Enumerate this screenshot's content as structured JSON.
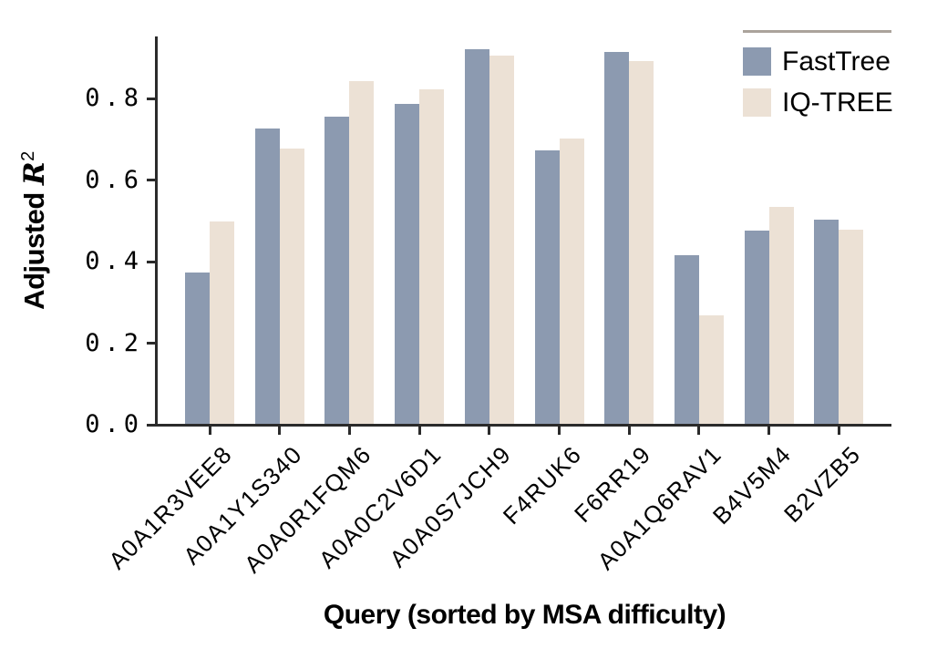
{
  "chart_data": {
    "type": "bar",
    "title": "",
    "xlabel": "Query (sorted by MSA difficulty)",
    "ylabel": {
      "text": "Adjusted ",
      "math": "R",
      "superscript": "2"
    },
    "categories": [
      "A0A1R3VEE8",
      "A0A1Y1S340",
      "A0A0R1FQM6",
      "A0A0C2V6D1",
      "A0A0S7JCH9",
      "F4RUK6",
      "F6RR19",
      "A0A1Q6RAV1",
      "B4V5M4",
      "B2VZB5"
    ],
    "series": [
      {
        "name": "FastTree",
        "color": "#8C9AB0",
        "values": [
          0.372,
          0.724,
          0.754,
          0.784,
          0.918,
          0.67,
          0.911,
          0.413,
          0.474,
          0.501
        ]
      },
      {
        "name": "IQ-TREE",
        "color": "#ECE1D5",
        "values": [
          0.497,
          0.674,
          0.84,
          0.82,
          0.902,
          0.699,
          0.89,
          0.267,
          0.531,
          0.477
        ]
      }
    ],
    "ylim": [
      0.0,
      0.952
    ],
    "yticks": [
      0.0,
      0.2,
      0.4,
      0.6,
      0.8
    ],
    "ytick_labels": [
      "0.0",
      "0.2",
      "0.4",
      "0.6",
      "0.8"
    ],
    "grid": false,
    "legend": {
      "location": "upper right",
      "separator_color": "#ABA39B",
      "entries": [
        "FastTree",
        "IQ-TREE"
      ]
    },
    "axis_color": "#2B2B2B"
  }
}
